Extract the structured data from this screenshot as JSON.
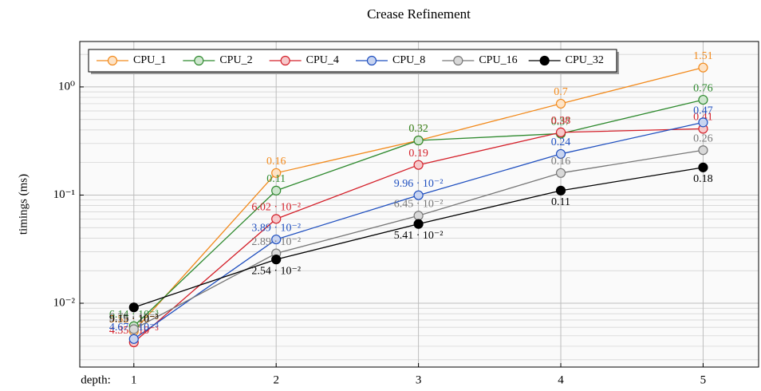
{
  "chart_data": {
    "type": "line",
    "title": "Crease Refinement",
    "ylabel": "timings (ms)",
    "xlabel": "depth:",
    "log_y": true,
    "grid": true,
    "legend": "upper left",
    "x": [
      1,
      2,
      3,
      4,
      5
    ],
    "xlim": [
      0.62,
      5.39
    ],
    "xticks": [
      1,
      2,
      3,
      4,
      5
    ],
    "ylim": [
      0.00257,
      2.63
    ],
    "yticks": [
      {
        "value": 0.01,
        "label": "10⁻²"
      },
      {
        "value": 0.1,
        "label": "10⁻¹"
      },
      {
        "value": 1,
        "label": "10⁰"
      }
    ],
    "series": [
      {
        "name": "CPU_1",
        "color": "#f28a1c",
        "marker_color": "#fde3c6",
        "values": [
          0.00552,
          0.16,
          0.32,
          0.7,
          1.51
        ],
        "value_labels": [
          "5.52 · 10⁻³",
          "0.16",
          "0.32",
          "0.7",
          "1.51"
        ]
      },
      {
        "name": "CPU_2",
        "color": "#2f8a2f",
        "marker_color": "#cfe6cf",
        "values": [
          0.00614,
          0.11,
          0.32,
          0.37,
          0.76
        ],
        "value_labels": [
          "6.14 · 10⁻³",
          "0.11",
          "0.32",
          "0.37",
          "0.76"
        ]
      },
      {
        "name": "CPU_4",
        "color": "#d4202a",
        "marker_color": "#f6c9cb",
        "values": [
          0.00435,
          0.0602,
          0.19,
          0.38,
          0.41
        ],
        "value_labels": [
          "4.35 · 10⁻³",
          "6.02 · 10⁻²",
          "0.19",
          "0.38",
          "0.41"
        ]
      },
      {
        "name": "CPU_8",
        "color": "#1f4fbf",
        "marker_color": "#c8d4f0",
        "values": [
          0.00467,
          0.0389,
          0.0996,
          0.24,
          0.47
        ],
        "value_labels": [
          "4.67 · 10⁻³",
          "3.89 · 10⁻²",
          "9.96 · 10⁻²",
          "0.24",
          "0.47"
        ]
      },
      {
        "name": "CPU_16",
        "color": "#777777",
        "marker_color": "#d8d8d8",
        "values": [
          0.00576,
          0.0289,
          0.0645,
          0.16,
          0.26
        ],
        "value_labels": [
          "5.76 · 10⁻³",
          "2.89 · 10⁻²",
          "6.45 · 10⁻²",
          "0.16",
          "0.26"
        ]
      },
      {
        "name": "CPU_32",
        "color": "#000000",
        "marker_color": "#000000",
        "values": [
          0.00915,
          0.0254,
          0.0541,
          0.11,
          0.18
        ],
        "value_labels": [
          "9.15 · 10⁻³",
          "2.54 · 10⁻²",
          "5.41 · 10⁻²",
          "0.11",
          "0.18"
        ]
      }
    ]
  }
}
